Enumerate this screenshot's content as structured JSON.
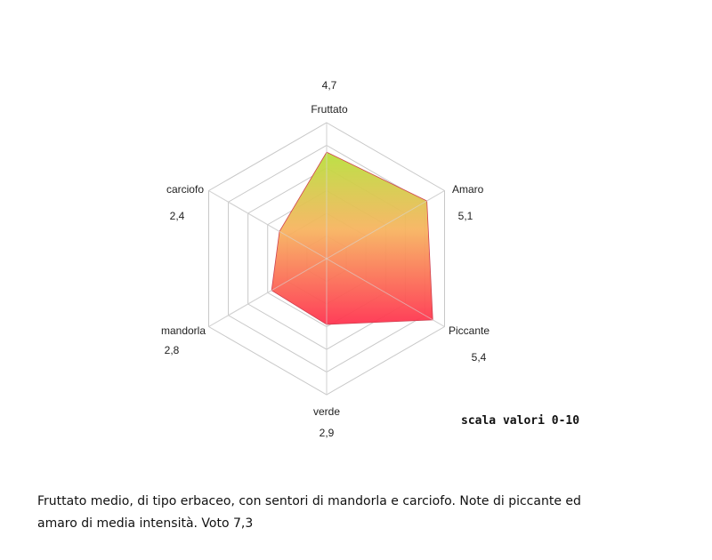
{
  "chart_data": {
    "type": "radar",
    "categories": [
      "Fruttato",
      "Amaro",
      "Piccante",
      "verde",
      "mandorla",
      "carciofo"
    ],
    "values": [
      4.7,
      5.1,
      5.4,
      2.9,
      2.8,
      2.4
    ],
    "value_labels": [
      "4,7",
      "5,1",
      "5,4",
      "2,9",
      "2,8",
      "2,4"
    ],
    "rlim": [
      0,
      6
    ],
    "rings": 6,
    "grid": true,
    "fill_gradient": {
      "top": "#b8e03c",
      "middle": "#f7b460",
      "bottom": "#ff3350"
    },
    "grid_color": "#c8c8c8"
  },
  "scale_note": "scala valori 0-10",
  "caption": "Fruttato medio, di tipo  erbaceo, con sentori di mandorla e carciofo. Note di piccante ed amaro di media intensità. Voto 7,3"
}
